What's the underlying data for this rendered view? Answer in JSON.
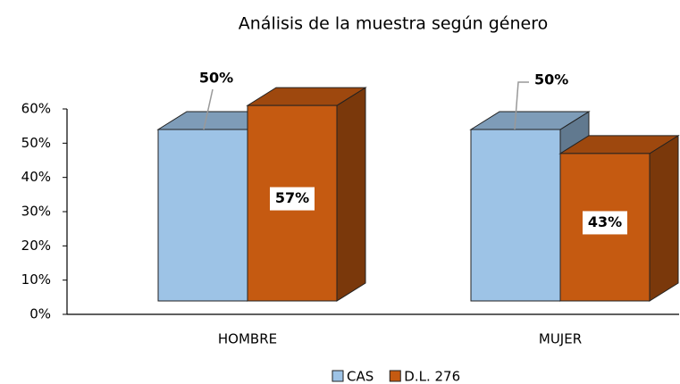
{
  "chart_data": {
    "type": "bar3d",
    "title": "Análisis de la muestra según género",
    "categories": [
      "HOMBRE",
      "MUJER"
    ],
    "series": [
      {
        "name": "CAS",
        "color": "#9dc3e6",
        "values": [
          50,
          50
        ],
        "value_labels": [
          "50%",
          "50%"
        ]
      },
      {
        "name": "D.L. 276",
        "color": "#c55a11",
        "values": [
          57,
          43
        ],
        "value_labels": [
          "57%",
          "43%"
        ]
      }
    ],
    "ylim": [
      0,
      60
    ],
    "yticks": [
      {
        "value": 0,
        "label": "0%"
      },
      {
        "value": 10,
        "label": "10%"
      },
      {
        "value": 20,
        "label": "20%"
      },
      {
        "value": 30,
        "label": "30%"
      },
      {
        "value": 40,
        "label": "40%"
      },
      {
        "value": 50,
        "label": "50%"
      },
      {
        "value": 60,
        "label": "60%"
      }
    ],
    "legend": "bottom"
  }
}
